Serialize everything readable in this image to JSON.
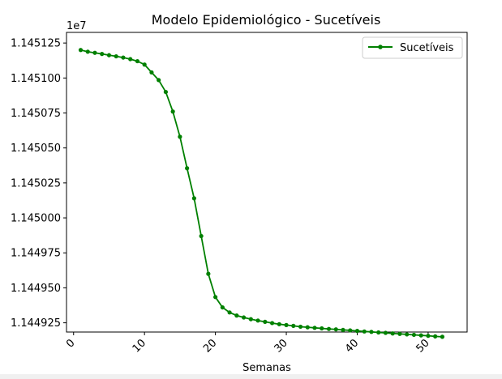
{
  "chart_data": {
    "type": "line",
    "title": "Modelo Epidemiológico - Sucetíveis",
    "xlabel": "Semanas",
    "ylabel": "",
    "offset_label": "1e7",
    "xlim": [
      -1,
      55.5
    ],
    "ylim": [
      11449184,
      11451326
    ],
    "x_ticks": [
      0,
      10,
      20,
      30,
      40,
      50
    ],
    "x_tick_labels": [
      "0",
      "10",
      "20",
      "30",
      "40",
      "50"
    ],
    "y_ticks": [
      11449250,
      11449500,
      11449750,
      11450000,
      11450250,
      11450500,
      11450750,
      11451000,
      11451250
    ],
    "y_tick_labels": [
      "1.144925",
      "1.144950",
      "1.144975",
      "1.145000",
      "1.145025",
      "1.145050",
      "1.145075",
      "1.145100",
      "1.145125"
    ],
    "grid": false,
    "legend_placement": "top-right",
    "series": [
      {
        "name": "Sucetíveis",
        "color": "#008000",
        "marker": "circle",
        "x": [
          1,
          2,
          3,
          4,
          5,
          6,
          7,
          8,
          9,
          10,
          11,
          12,
          13,
          14,
          15,
          16,
          17,
          18,
          19,
          20,
          21,
          22,
          23,
          24,
          25,
          26,
          27,
          28,
          29,
          30,
          31,
          32,
          33,
          34,
          35,
          36,
          37,
          38,
          39,
          40,
          41,
          42,
          43,
          44,
          45,
          46,
          47,
          48,
          49,
          50,
          51,
          52
        ],
        "values": [
          11451200,
          11451188,
          11451180,
          11451172,
          11451163,
          11451155,
          11451146,
          11451135,
          11451120,
          11451096,
          11451040,
          11450985,
          11450900,
          11450760,
          11450580,
          11450355,
          11450140,
          11449870,
          11449600,
          11449434,
          11449360,
          11449324,
          11449302,
          11449288,
          11449276,
          11449266,
          11449257,
          11449248,
          11449240,
          11449234,
          11449228,
          11449222,
          11449218,
          11449214,
          11449210,
          11449206,
          11449203,
          11449199,
          11449196,
          11449192,
          11449188,
          11449185,
          11449181,
          11449178,
          11449174,
          11449171,
          11449167,
          11449164,
          11449160,
          11449157,
          11449153,
          11449150
        ]
      }
    ]
  }
}
